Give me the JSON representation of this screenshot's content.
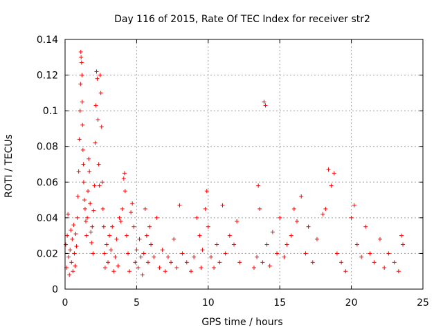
{
  "chart_data": {
    "type": "scatter",
    "title": "Day 116 of 2015, Rate Of TEC Index for receiver str2",
    "xlabel": "GPS time / hours",
    "ylabel": "ROTI / TECUs",
    "xlim": [
      0,
      25
    ],
    "ylim": [
      0,
      0.14
    ],
    "xticks": [
      0,
      5,
      10,
      15,
      20,
      25
    ],
    "yticks": [
      0,
      0.02,
      0.04,
      0.06,
      0.08,
      0.1,
      0.12,
      0.14
    ],
    "xtick_labels": [
      "0",
      "5",
      "10",
      "15",
      "20",
      "25"
    ],
    "ytick_labels": [
      "0",
      "0.02",
      "0.04",
      "0.06",
      "0.08",
      "0.1",
      "0.12",
      "0.14"
    ],
    "grid": true,
    "marker": "+",
    "color": "#ff0000",
    "series": [
      {
        "name": "ROTI",
        "points": [
          [
            0.05,
            0.025
          ],
          [
            0.1,
            0.012
          ],
          [
            0.15,
            0.03
          ],
          [
            0.2,
            0.042
          ],
          [
            0.25,
            0.018
          ],
          [
            0.3,
            0.008
          ],
          [
            0.35,
            0.022
          ],
          [
            0.4,
            0.033
          ],
          [
            0.45,
            0.015
          ],
          [
            0.5,
            0.028
          ],
          [
            0.55,
            0.01
          ],
          [
            0.6,
            0.036
          ],
          [
            0.65,
            0.02
          ],
          [
            0.7,
            0.013
          ],
          [
            0.75,
            0.031
          ],
          [
            0.8,
            0.024
          ],
          [
            0.85,
            0.04
          ],
          [
            0.9,
            0.052
          ],
          [
            0.95,
            0.066
          ],
          [
            1.0,
            0.084
          ],
          [
            1.05,
            0.1
          ],
          [
            1.08,
            0.115
          ],
          [
            1.1,
            0.133
          ],
          [
            1.12,
            0.13
          ],
          [
            1.15,
            0.127
          ],
          [
            1.18,
            0.12
          ],
          [
            1.2,
            0.105
          ],
          [
            1.22,
            0.092
          ],
          [
            1.25,
            0.078
          ],
          [
            1.28,
            0.07
          ],
          [
            1.3,
            0.06
          ],
          [
            1.35,
            0.05
          ],
          [
            1.4,
            0.045
          ],
          [
            1.45,
            0.038
          ],
          [
            1.5,
            0.03
          ],
          [
            1.55,
            0.04
          ],
          [
            1.6,
            0.055
          ],
          [
            1.65,
            0.073
          ],
          [
            1.7,
            0.066
          ],
          [
            1.75,
            0.048
          ],
          [
            1.8,
            0.032
          ],
          [
            1.85,
            0.026
          ],
          [
            1.9,
            0.035
          ],
          [
            1.95,
            0.02
          ],
          [
            2.0,
            0.044
          ],
          [
            2.05,
            0.058
          ],
          [
            2.1,
            0.082
          ],
          [
            2.15,
            0.103
          ],
          [
            2.2,
            0.122
          ],
          [
            2.25,
            0.118
          ],
          [
            2.3,
            0.095
          ],
          [
            2.35,
            0.07
          ],
          [
            2.4,
            0.058
          ],
          [
            2.45,
            0.12
          ],
          [
            2.5,
            0.11
          ],
          [
            2.55,
            0.091
          ],
          [
            2.6,
            0.06
          ],
          [
            2.65,
            0.045
          ],
          [
            2.7,
            0.035
          ],
          [
            2.75,
            0.02
          ],
          [
            2.8,
            0.012
          ],
          [
            2.9,
            0.025
          ],
          [
            3.0,
            0.015
          ],
          [
            3.1,
            0.03
          ],
          [
            3.2,
            0.022
          ],
          [
            3.3,
            0.035
          ],
          [
            3.4,
            0.01
          ],
          [
            3.5,
            0.018
          ],
          [
            3.6,
            0.028
          ],
          [
            3.7,
            0.013
          ],
          [
            3.8,
            0.04
          ],
          [
            3.9,
            0.038
          ],
          [
            4.0,
            0.045
          ],
          [
            4.1,
            0.062
          ],
          [
            4.15,
            0.065
          ],
          [
            4.2,
            0.055
          ],
          [
            4.3,
            0.03
          ],
          [
            4.4,
            0.02
          ],
          [
            4.5,
            0.01
          ],
          [
            4.6,
            0.043
          ],
          [
            4.7,
            0.048
          ],
          [
            4.8,
            0.035
          ],
          [
            4.9,
            0.015
          ],
          [
            5.0,
            0.022
          ],
          [
            5.1,
            0.012
          ],
          [
            5.2,
            0.028
          ],
          [
            5.3,
            0.018
          ],
          [
            5.4,
            0.008
          ],
          [
            5.5,
            0.02
          ],
          [
            5.6,
            0.045
          ],
          [
            5.7,
            0.03
          ],
          [
            5.8,
            0.015
          ],
          [
            5.9,
            0.035
          ],
          [
            6.0,
            0.025
          ],
          [
            6.2,
            0.018
          ],
          [
            6.4,
            0.04
          ],
          [
            6.6,
            0.012
          ],
          [
            6.8,
            0.022
          ],
          [
            7.0,
            0.01
          ],
          [
            7.2,
            0.018
          ],
          [
            7.4,
            0.015
          ],
          [
            7.6,
            0.028
          ],
          [
            7.8,
            0.012
          ],
          [
            8.0,
            0.047
          ],
          [
            8.2,
            0.02
          ],
          [
            8.5,
            0.015
          ],
          [
            8.8,
            0.01
          ],
          [
            9.0,
            0.018
          ],
          [
            9.2,
            0.04
          ],
          [
            9.4,
            0.03
          ],
          [
            9.5,
            0.012
          ],
          [
            9.6,
            0.022
          ],
          [
            9.8,
            0.045
          ],
          [
            9.9,
            0.055
          ],
          [
            10.0,
            0.035
          ],
          [
            10.2,
            0.018
          ],
          [
            10.4,
            0.012
          ],
          [
            10.6,
            0.025
          ],
          [
            10.8,
            0.015
          ],
          [
            11.0,
            0.047
          ],
          [
            11.2,
            0.02
          ],
          [
            11.5,
            0.03
          ],
          [
            11.8,
            0.025
          ],
          [
            12.0,
            0.038
          ],
          [
            12.2,
            0.015
          ],
          [
            13.2,
            0.012
          ],
          [
            13.4,
            0.018
          ],
          [
            13.5,
            0.058
          ],
          [
            13.6,
            0.045
          ],
          [
            13.8,
            0.015
          ],
          [
            13.9,
            0.105
          ],
          [
            14.0,
            0.103
          ],
          [
            14.1,
            0.025
          ],
          [
            14.3,
            0.013
          ],
          [
            14.5,
            0.032
          ],
          [
            14.8,
            0.02
          ],
          [
            15.0,
            0.04
          ],
          [
            15.3,
            0.018
          ],
          [
            15.5,
            0.025
          ],
          [
            15.8,
            0.03
          ],
          [
            16.0,
            0.045
          ],
          [
            16.2,
            0.038
          ],
          [
            16.5,
            0.052
          ],
          [
            16.8,
            0.02
          ],
          [
            17.0,
            0.035
          ],
          [
            17.3,
            0.015
          ],
          [
            17.6,
            0.028
          ],
          [
            18.0,
            0.042
          ],
          [
            18.2,
            0.045
          ],
          [
            18.4,
            0.067
          ],
          [
            18.6,
            0.058
          ],
          [
            18.8,
            0.065
          ],
          [
            19.0,
            0.02
          ],
          [
            19.3,
            0.015
          ],
          [
            19.6,
            0.01
          ],
          [
            20.0,
            0.04
          ],
          [
            20.2,
            0.047
          ],
          [
            20.4,
            0.025
          ],
          [
            20.7,
            0.018
          ],
          [
            21.0,
            0.035
          ],
          [
            21.3,
            0.02
          ],
          [
            21.6,
            0.015
          ],
          [
            22.0,
            0.028
          ],
          [
            22.3,
            0.012
          ],
          [
            22.6,
            0.02
          ],
          [
            23.0,
            0.015
          ],
          [
            23.3,
            0.01
          ],
          [
            23.5,
            0.03
          ],
          [
            23.6,
            0.025
          ]
        ]
      }
    ]
  }
}
